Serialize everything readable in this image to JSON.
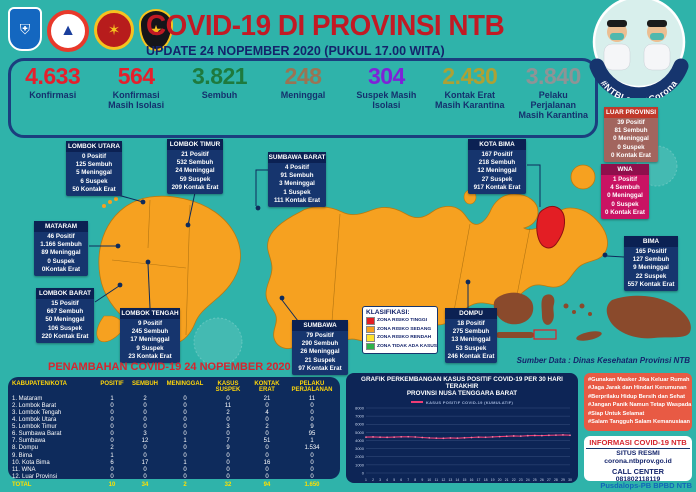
{
  "header": {
    "title": "COVID-19 DI PROVINSI NTB",
    "subtitle": "UPDATE 24 NOPEMBER 2020 (PUKUL 17.00 WITA)",
    "campaign": "#NTBLawanCorona",
    "logos": [
      "ntb-province-crest",
      "bpbd-ntb-logo",
      "wira-bhakti-military-crest",
      "ntb-police-crest"
    ]
  },
  "summary": {
    "items": [
      {
        "value": "4.633",
        "label": "Konfirmasi",
        "color": "#E51F2C"
      },
      {
        "value": "564",
        "label": "Konfirmasi Masih Isolasi",
        "color": "#E51F2C"
      },
      {
        "value": "3.821",
        "label": "Sembuh",
        "color": "#1E7A3E"
      },
      {
        "value": "248",
        "label": "Meninggal",
        "color": "#9A7454"
      },
      {
        "value": "304",
        "label": "Suspek Masih Isolasi",
        "color": "#7E22D8"
      },
      {
        "value": "2.430",
        "label": "Kontak Erat Masih Karantina",
        "color": "#ADA135"
      },
      {
        "value": "3.840",
        "label": "Pelaku Perjalanan Masih Karantina",
        "color": "#8E9496"
      }
    ]
  },
  "map": {
    "regions": [
      {
        "key": "lombok-utara",
        "name": "LOMBOK UTARA",
        "style": "navy",
        "lines": [
          "0 Positif",
          "125 Sembuh",
          "5 Meninggal",
          "6 Suspek",
          "50 Kontak Erat"
        ]
      },
      {
        "key": "lombok-timur",
        "name": "LOMBOK TIMUR",
        "style": "navy",
        "lines": [
          "21 Positif",
          "532 Sembuh",
          "24 Meninggal",
          "59 Suspek",
          "209 Kontak Erat"
        ]
      },
      {
        "key": "sumbawa-barat",
        "name": "SUMBAWA BARAT",
        "style": "navy",
        "lines": [
          "4 Positif",
          "91 Sembuh",
          "3 Meninggal",
          "1 Suspek",
          "111 Kontak Erat"
        ]
      },
      {
        "key": "kota-bima",
        "name": "KOTA BIMA",
        "style": "navy",
        "lines": [
          "167 Positif",
          "218 Sembuh",
          "12 Meninggal",
          "27 Suspek",
          "917 Kontak Erat"
        ]
      },
      {
        "key": "mataram",
        "name": "MATARAM",
        "style": "navy",
        "lines": [
          "46 Positif",
          "1.166 Sembuh",
          "89 Meninggal",
          "0 Suspek",
          "0Kontak Erat"
        ]
      },
      {
        "key": "lombok-barat",
        "name": "LOMBOK BARAT",
        "style": "navy",
        "lines": [
          "15 Positif",
          "667 Sembuh",
          "50 Meninggal",
          "106 Suspek",
          "220 Kontak Erat"
        ]
      },
      {
        "key": "lombok-tengah",
        "name": "LOMBOK TENGAH",
        "style": "navy",
        "lines": [
          "9 Positif",
          "245 Sembuh",
          "17 Meninggal",
          "9 Suspek",
          "23 Kontak Erat"
        ]
      },
      {
        "key": "sumbawa",
        "name": "SUMBAWA",
        "style": "navy",
        "lines": [
          "79 Positif",
          "290 Sembuh",
          "26 Meninggal",
          "21 Suspek",
          "97 Kontak Erat"
        ]
      },
      {
        "key": "dompu",
        "name": "DOMPU",
        "style": "navy",
        "lines": [
          "18 Positif",
          "275 Sembuh",
          "13 Meninggal",
          "53 Suspek",
          "246 Kontak Erat"
        ]
      },
      {
        "key": "luar-provinsi",
        "name": "LUAR PROVINSI",
        "style": "maroon",
        "lines": [
          "39 Positif",
          "81 Sembuh",
          "0 Meninggal",
          "0 Suspek",
          "0 Kontak Erat"
        ]
      },
      {
        "key": "wna",
        "name": "WNA",
        "style": "magenta",
        "lines": [
          "1 Positif",
          "4 Sembuh",
          "0 Meninggal",
          "0 Suspek",
          "0 Kontak Erat"
        ]
      },
      {
        "key": "bima",
        "name": "BIMA",
        "style": "navy",
        "lines": [
          "165 Positif",
          "127 Sembuh",
          "9 Meninggal",
          "22 Suspek",
          "557 Kontak Erat"
        ]
      }
    ],
    "zone_colors": {
      "risiko_tinggi": "#E31E24",
      "risiko_sedang": "#F6A120",
      "risiko_rendah": "#FFE32E",
      "tidak_ada_kasus": "#2DB34A"
    }
  },
  "legend": {
    "title": "KLASIFIKASI:",
    "items": [
      {
        "label": "ZONA RISIKO TINGGI",
        "color": "#E31E24"
      },
      {
        "label": "ZONA RISIKO SEDANG",
        "color": "#F6A120"
      },
      {
        "label": "ZONA RISIKO RENDAH",
        "color": "#FFE32E"
      },
      {
        "label": "ZONA TIDAK ADA KASUS",
        "color": "#2DB34A"
      }
    ]
  },
  "table": {
    "title": "PENAMBAHAN COVID-19 24 NOPEMBER 2020",
    "columns": [
      "KABUPATEN/KOTA",
      "POSITIF",
      "SEMBUH",
      "MENINGGAL",
      "KASUS SUSPEK",
      "KONTAK ERAT",
      "PELAKU PERJALANAN"
    ],
    "rows": [
      [
        "1. Mataram",
        "1",
        "2",
        "0",
        "0",
        "21",
        "11"
      ],
      [
        "2. Lombok Barat",
        "0",
        "0",
        "0",
        "11",
        "0",
        "0"
      ],
      [
        "3. Lombok Tengah",
        "0",
        "0",
        "0",
        "2",
        "4",
        "0"
      ],
      [
        "4. Lombok Utara",
        "0",
        "0",
        "0",
        "0",
        "0",
        "0"
      ],
      [
        "5. Lombok Timur",
        "0",
        "0",
        "0",
        "3",
        "2",
        "9"
      ],
      [
        "6. Sumbawa Barat",
        "0",
        "3",
        "0",
        "0",
        "0",
        "95"
      ],
      [
        "7. Sumbawa",
        "0",
        "12",
        "1",
        "7",
        "51",
        "1"
      ],
      [
        "8. Dompu",
        "2",
        "0",
        "0",
        "9",
        "0",
        "1.534"
      ],
      [
        "9. Bima",
        "1",
        "0",
        "0",
        "0",
        "0",
        "0"
      ],
      [
        "10. Kota Bima",
        "6",
        "17",
        "1",
        "0",
        "16",
        "0"
      ],
      [
        "11. WNA",
        "0",
        "0",
        "0",
        "0",
        "0",
        "0"
      ],
      [
        "12. Luar Provinsi",
        "0",
        "0",
        "0",
        "0",
        "0",
        "0"
      ]
    ],
    "total": [
      "TOTAL",
      "10",
      "34",
      "2",
      "32",
      "94",
      "1.650"
    ]
  },
  "chart_data": {
    "type": "line",
    "title": "GRAFIK PERKEMBANGAN KASUS POSITIF COVID-19 PER 30 HARI TERAKHIR",
    "subtitle": "PROVINSI NUSA TENGGARA BARAT",
    "legend": "KASUS POSITIF COVID-19 (KUMULATIF)",
    "legend_position": "top",
    "grid": true,
    "x_labels": [
      "1",
      "2",
      "3",
      "4",
      "5",
      "6",
      "7",
      "8",
      "9",
      "10",
      "11",
      "12",
      "13",
      "14",
      "15",
      "16",
      "17",
      "18",
      "19",
      "20",
      "21",
      "22",
      "23",
      "24",
      "25",
      "26",
      "27",
      "28",
      "29",
      "30"
    ],
    "values": [
      4420,
      4440,
      4410,
      4390,
      4420,
      4450,
      4460,
      4430,
      4370,
      4320,
      4290,
      4270,
      4310,
      4290,
      4330,
      4370,
      4420,
      4400,
      4440,
      4480,
      4520,
      4560,
      4540,
      4590,
      4620,
      4600,
      4640,
      4660,
      4690,
      4650
    ],
    "ylim": [
      0,
      8000
    ],
    "ytick_step": 1000,
    "line_color": "#EE3D75"
  },
  "info": {
    "hashtags": [
      "#Gunakan Masker Jika Keluar Rumah",
      "#Jaga Jarak dan Hindari Kerumunan",
      "#Berprilaku Hidup Bersih dan Sehat",
      "#Jangan Panik Namun Tetap Waspada",
      "#Siap Untuk Selamat",
      "#Salam Tangguh Salam Kemanusiaan"
    ],
    "panel_title": "INFORMASI COVID-19 NTB",
    "situs_label": "SITUS RESMI",
    "situs_value": "corona.ntbprov.go.id",
    "call_label": "CALL CENTER",
    "call_value": "081802118119"
  },
  "misc": {
    "source": "Sumber Data : Dinas Kesehatan Provinsi NTB",
    "footer": "Pusdalops-PB BPBD NTB"
  }
}
